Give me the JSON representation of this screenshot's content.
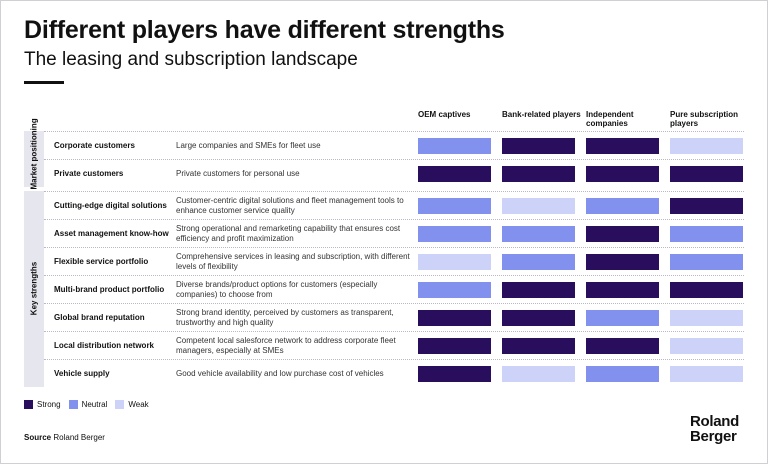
{
  "title": "Different players have different strengths",
  "subtitle": "The leasing and subscription landscape",
  "columns": [
    "OEM captives",
    "Bank-related players",
    "Independent companies",
    "Pure subscription players"
  ],
  "groups": {
    "market": "Market positioning",
    "key": "Key strengths"
  },
  "colors": {
    "strong": "#2a0e5e",
    "neutral": "#8290ee",
    "weak": "#cdd3f8"
  },
  "rows": [
    {
      "name": "Corporate customers",
      "desc": "Large companies and SMEs for fleet use",
      "ratings": [
        "neutral",
        "strong",
        "strong",
        "weak"
      ]
    },
    {
      "name": "Private customers",
      "desc": "Private customers for personal use",
      "ratings": [
        "strong",
        "strong",
        "strong",
        "strong"
      ]
    },
    {
      "name": "Cutting-edge digital solutions",
      "desc": "Customer-centric digital solutions and fleet management tools to enhance customer service quality",
      "ratings": [
        "neutral",
        "weak",
        "neutral",
        "strong"
      ]
    },
    {
      "name": "Asset management know-how",
      "desc": "Strong operational and remarketing capability that ensures cost efficiency and profit maximization",
      "ratings": [
        "neutral",
        "neutral",
        "strong",
        "neutral"
      ]
    },
    {
      "name": "Flexible service portfolio",
      "desc": "Comprehensive services in leasing and subscription, with different levels of flexibility",
      "ratings": [
        "weak",
        "neutral",
        "strong",
        "neutral"
      ]
    },
    {
      "name": "Multi-brand product portfolio",
      "desc": "Diverse brands/product options for customers (especially companies) to choose from",
      "ratings": [
        "neutral",
        "strong",
        "strong",
        "strong"
      ]
    },
    {
      "name": "Global brand reputation",
      "desc": "Strong brand identity, perceived by customers as transparent, trustworthy and high quality",
      "ratings": [
        "strong",
        "strong",
        "neutral",
        "weak"
      ]
    },
    {
      "name": "Local distribution network",
      "desc": "Competent local salesforce network to address corporate fleet managers, especially at SMEs",
      "ratings": [
        "strong",
        "strong",
        "strong",
        "weak"
      ]
    },
    {
      "name": "Vehicle supply",
      "desc": "Good vehicle availability and low purchase cost of vehicles",
      "ratings": [
        "strong",
        "weak",
        "neutral",
        "weak"
      ]
    }
  ],
  "legend": [
    {
      "key": "strong",
      "label": "Strong"
    },
    {
      "key": "neutral",
      "label": "Neutral"
    },
    {
      "key": "weak",
      "label": "Weak"
    }
  ],
  "source": {
    "label": "Source",
    "text": "Roland Berger"
  },
  "logo": {
    "line1": "Roland",
    "line2": "Berger"
  }
}
